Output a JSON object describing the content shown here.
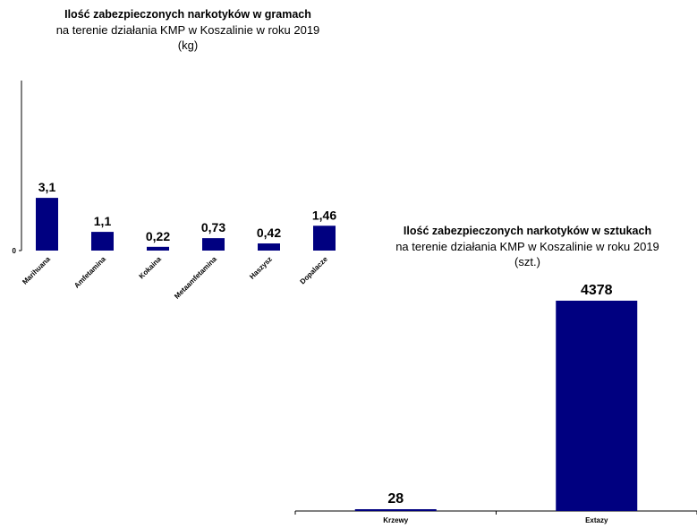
{
  "chart_data": [
    {
      "type": "bar",
      "title": "Ilość zabezpieczonych narkotyków w gramach",
      "subtitle": "na terenie działania KMP w Koszalinie w roku 2019",
      "unit": "(kg)",
      "categories": [
        "Marihuana",
        "Amfetamina",
        "Kokaina",
        "Metaamfetamina",
        "Haszysz",
        "Dopalacze"
      ],
      "values": [
        3.1,
        1.1,
        0.22,
        0.73,
        0.42,
        1.46
      ],
      "value_labels": [
        "3,1",
        "1,1",
        "0,22",
        "0,73",
        "0,42",
        "1,46"
      ],
      "y_ticks": [
        "0"
      ],
      "ylim": [
        0,
        10
      ],
      "color": "#000080",
      "grid": false,
      "legend": "none"
    },
    {
      "type": "bar",
      "title": "Ilość zabezpieczonych narkotyków w sztukach",
      "subtitle": "na terenie działania KMP w Koszalinie w roku 2019",
      "unit": "(szt.)",
      "categories": [
        "Krzewy",
        "Extazy"
      ],
      "values": [
        28,
        4378
      ],
      "value_labels": [
        "28",
        "4378"
      ],
      "ylim": [
        0,
        4378
      ],
      "color": "#000080",
      "grid": false,
      "legend": "none"
    }
  ]
}
